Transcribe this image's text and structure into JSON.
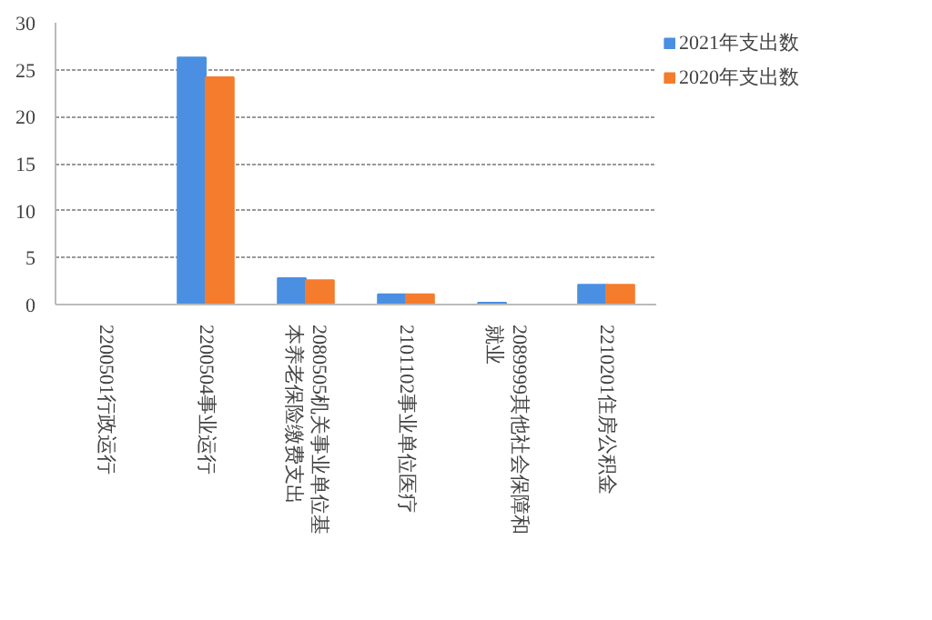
{
  "chart_data": {
    "type": "bar",
    "categories": [
      "2200501行政运行",
      "2200504事业运行",
      "2080505机关事业单位基本养老保险缴费支出",
      "2101102事业单位医疗",
      "2089999其他社会保障和就业",
      "2210201住房公积金"
    ],
    "series": [
      {
        "name": "2021年支出数",
        "color": "#4a8fe2",
        "values": [
          0,
          26.3,
          2.8,
          1.1,
          0.2,
          2.1
        ]
      },
      {
        "name": "2020年支出数",
        "color": "#f47c2c",
        "values": [
          0,
          24.2,
          2.6,
          1.1,
          0,
          2.1
        ]
      }
    ],
    "ylim": [
      0,
      30
    ],
    "yticks": [
      0,
      5,
      10,
      15,
      20,
      25,
      30
    ],
    "grid": "y",
    "legend": "right"
  }
}
